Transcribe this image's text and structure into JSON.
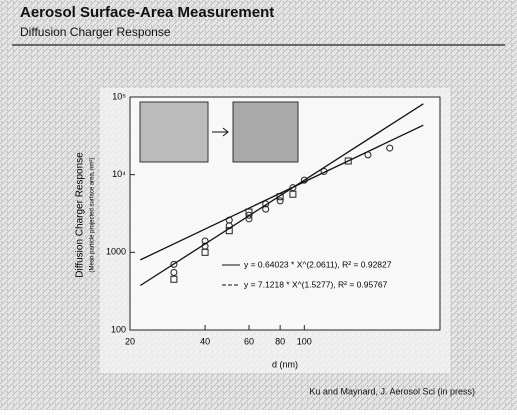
{
  "title": "Aerosol Surface-Area Measurement",
  "subtitle": "Diffusion Charger Response",
  "citation": "Ku and Maynard, J. Aerosol Sci (in press)",
  "chart_data": {
    "type": "scatter",
    "y_label": "Diffusion Charger Response",
    "y_sublabel": "(Mean particle projected surface area, nm²)",
    "x_label": "d (nm)",
    "log_x": true,
    "log_y": true,
    "xlim": [
      20,
      350
    ],
    "ylim": [
      100,
      100000
    ],
    "xticks": [
      20,
      40,
      60,
      80,
      100
    ],
    "yticks": [
      100,
      1000,
      {
        "value": 10000,
        "label": "10⁴"
      },
      {
        "value": 100000,
        "label": "10⁵"
      }
    ],
    "color": "#222222",
    "x": [
      30,
      30,
      30,
      40,
      40,
      40,
      50,
      50,
      50,
      60,
      60,
      60,
      70,
      70,
      80,
      80,
      90,
      90,
      100,
      120,
      150,
      180,
      220
    ],
    "values": [
      700,
      550,
      450,
      1400,
      1200,
      1000,
      2200,
      2600,
      1900,
      3000,
      2700,
      3300,
      4200,
      3600,
      5200,
      4600,
      6800,
      5600,
      8500,
      11000,
      15000,
      18000,
      22000
    ],
    "fits": [
      {
        "label": "y = 0.64023 * X^(2.0611), R² = 0.92827",
        "x": [
          22,
          300
        ],
        "values": [
          374,
          81760
        ]
      },
      {
        "label": "y = 7.1218 * X^(1.5277), R² = 0.95767",
        "x": [
          22,
          300
        ],
        "values": [
          800,
          43330
        ]
      }
    ]
  }
}
